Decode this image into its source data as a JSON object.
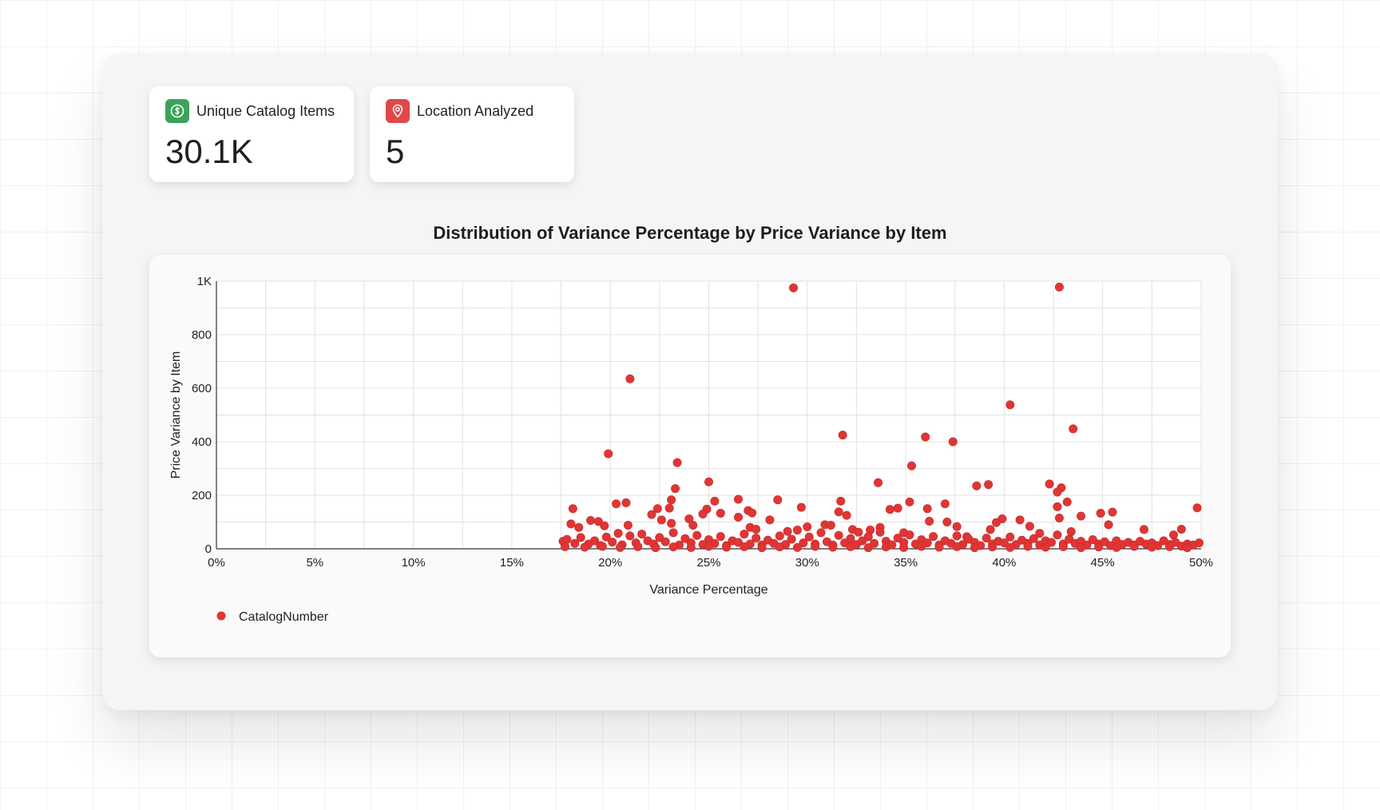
{
  "kpis": [
    {
      "label": "Unique Catalog Items",
      "value": "30.1K",
      "icon": "dollar-icon",
      "color": "#3aa35a"
    },
    {
      "label": "Location Analyzed",
      "value": "5",
      "icon": "location-pin-icon",
      "color": "#e04848"
    }
  ],
  "chart_data": {
    "type": "scatter",
    "title": "Distribution of Variance Percentage by Price Variance by Item",
    "xlabel": "Variance Percentage",
    "ylabel": "Price Variance by Item",
    "xlim": [
      0,
      50
    ],
    "ylim": [
      0,
      1000
    ],
    "x_ticks": [
      "0%",
      "5%",
      "10%",
      "15%",
      "20%",
      "25%",
      "30%",
      "35%",
      "40%",
      "45%",
      "50%"
    ],
    "y_ticks": [
      "0",
      "200",
      "400",
      "600",
      "800",
      "1K"
    ],
    "grid": true,
    "legend_position": "bottom-left",
    "series": [
      {
        "name": "CatalogNumber",
        "color": "#e03535",
        "points": [
          [
            29.3,
            975
          ],
          [
            42.8,
            978
          ],
          [
            21.0,
            635
          ],
          [
            40.3,
            538
          ],
          [
            43.5,
            448
          ],
          [
            31.8,
            425
          ],
          [
            36.0,
            418
          ],
          [
            37.4,
            400
          ],
          [
            19.9,
            355
          ],
          [
            23.4,
            322
          ],
          [
            35.3,
            310
          ],
          [
            38.6,
            235
          ],
          [
            39.2,
            240
          ],
          [
            42.3,
            242
          ],
          [
            42.9,
            228
          ],
          [
            33.6,
            247
          ],
          [
            25.0,
            250
          ],
          [
            23.3,
            225
          ],
          [
            42.7,
            212
          ],
          [
            20.3,
            168
          ],
          [
            20.8,
            172
          ],
          [
            23.1,
            183
          ],
          [
            25.3,
            178
          ],
          [
            26.5,
            185
          ],
          [
            28.5,
            183
          ],
          [
            31.7,
            178
          ],
          [
            35.2,
            175
          ],
          [
            37.0,
            168
          ],
          [
            43.2,
            175
          ],
          [
            49.8,
            153
          ],
          [
            18.1,
            150
          ],
          [
            22.4,
            150
          ],
          [
            23.0,
            152
          ],
          [
            24.9,
            148
          ],
          [
            27.0,
            143
          ],
          [
            29.7,
            155
          ],
          [
            31.6,
            138
          ],
          [
            34.6,
            152
          ],
          [
            36.1,
            150
          ],
          [
            42.7,
            157
          ],
          [
            44.9,
            133
          ],
          [
            45.5,
            137
          ],
          [
            24.7,
            130
          ],
          [
            25.6,
            133
          ],
          [
            27.2,
            134
          ],
          [
            26.5,
            118
          ],
          [
            28.1,
            108
          ],
          [
            32.0,
            125
          ],
          [
            34.2,
            147
          ],
          [
            39.9,
            112
          ],
          [
            40.8,
            108
          ],
          [
            42.8,
            115
          ],
          [
            43.9,
            122
          ],
          [
            18.0,
            93
          ],
          [
            18.4,
            80
          ],
          [
            19.0,
            106
          ],
          [
            19.4,
            102
          ],
          [
            19.7,
            86
          ],
          [
            20.9,
            88
          ],
          [
            22.1,
            128
          ],
          [
            22.6,
            108
          ],
          [
            23.1,
            95
          ],
          [
            24.0,
            112
          ],
          [
            24.2,
            88
          ],
          [
            27.1,
            80
          ],
          [
            27.4,
            73
          ],
          [
            29.0,
            65
          ],
          [
            30.0,
            82
          ],
          [
            30.9,
            90
          ],
          [
            31.2,
            88
          ],
          [
            32.3,
            72
          ],
          [
            32.6,
            62
          ],
          [
            33.2,
            70
          ],
          [
            33.7,
            80
          ],
          [
            34.9,
            60
          ],
          [
            36.2,
            103
          ],
          [
            37.1,
            100
          ],
          [
            37.6,
            83
          ],
          [
            38.1,
            45
          ],
          [
            39.3,
            72
          ],
          [
            39.6,
            98
          ],
          [
            41.3,
            84
          ],
          [
            41.8,
            58
          ],
          [
            43.4,
            64
          ],
          [
            45.3,
            90
          ],
          [
            47.1,
            72
          ],
          [
            49.0,
            73
          ],
          [
            48.6,
            52
          ],
          [
            17.6,
            28
          ],
          [
            17.8,
            35
          ],
          [
            18.2,
            20
          ],
          [
            18.5,
            42
          ],
          [
            18.9,
            18
          ],
          [
            19.2,
            30
          ],
          [
            19.5,
            12
          ],
          [
            19.8,
            44
          ],
          [
            20.1,
            25
          ],
          [
            20.4,
            58
          ],
          [
            20.6,
            15
          ],
          [
            21.0,
            48
          ],
          [
            21.3,
            22
          ],
          [
            21.6,
            55
          ],
          [
            21.9,
            30
          ],
          [
            22.2,
            18
          ],
          [
            22.5,
            42
          ],
          [
            22.8,
            26
          ],
          [
            23.2,
            60
          ],
          [
            23.5,
            14
          ],
          [
            23.8,
            38
          ],
          [
            24.1,
            22
          ],
          [
            24.4,
            50
          ],
          [
            24.7,
            16
          ],
          [
            25.0,
            34
          ],
          [
            25.3,
            20
          ],
          [
            25.6,
            46
          ],
          [
            25.9,
            12
          ],
          [
            26.2,
            30
          ],
          [
            26.5,
            24
          ],
          [
            26.8,
            55
          ],
          [
            27.1,
            18
          ],
          [
            27.4,
            40
          ],
          [
            27.7,
            14
          ],
          [
            28.0,
            32
          ],
          [
            28.3,
            20
          ],
          [
            28.6,
            48
          ],
          [
            28.9,
            16
          ],
          [
            29.2,
            36
          ],
          [
            29.5,
            70
          ],
          [
            29.8,
            22
          ],
          [
            30.1,
            44
          ],
          [
            30.4,
            18
          ],
          [
            30.7,
            60
          ],
          [
            31.0,
            26
          ],
          [
            31.3,
            14
          ],
          [
            31.6,
            50
          ],
          [
            31.9,
            22
          ],
          [
            32.2,
            38
          ],
          [
            32.5,
            16
          ],
          [
            32.8,
            30
          ],
          [
            33.1,
            45
          ],
          [
            33.4,
            20
          ],
          [
            33.7,
            62
          ],
          [
            34.0,
            28
          ],
          [
            34.3,
            15
          ],
          [
            34.6,
            40
          ],
          [
            34.9,
            24
          ],
          [
            35.2,
            52
          ],
          [
            35.5,
            18
          ],
          [
            35.8,
            34
          ],
          [
            36.1,
            22
          ],
          [
            36.4,
            46
          ],
          [
            36.7,
            14
          ],
          [
            37.0,
            30
          ],
          [
            37.3,
            20
          ],
          [
            37.6,
            48
          ],
          [
            37.9,
            16
          ],
          [
            38.2,
            36
          ],
          [
            38.5,
            24
          ],
          [
            38.8,
            12
          ],
          [
            39.1,
            40
          ],
          [
            39.4,
            18
          ],
          [
            39.7,
            28
          ],
          [
            40.0,
            22
          ],
          [
            40.3,
            44
          ],
          [
            40.6,
            16
          ],
          [
            40.9,
            32
          ],
          [
            41.2,
            20
          ],
          [
            41.5,
            38
          ],
          [
            41.8,
            14
          ],
          [
            42.1,
            30
          ],
          [
            42.4,
            24
          ],
          [
            42.7,
            52
          ],
          [
            43.0,
            18
          ],
          [
            43.3,
            36
          ],
          [
            43.6,
            20
          ],
          [
            43.9,
            28
          ],
          [
            44.2,
            14
          ],
          [
            44.5,
            34
          ],
          [
            44.8,
            18
          ],
          [
            45.1,
            26
          ],
          [
            45.4,
            12
          ],
          [
            45.7,
            30
          ],
          [
            46.0,
            16
          ],
          [
            46.3,
            24
          ],
          [
            46.6,
            14
          ],
          [
            46.9,
            28
          ],
          [
            47.2,
            18
          ],
          [
            47.5,
            22
          ],
          [
            47.8,
            12
          ],
          [
            48.1,
            30
          ],
          [
            48.4,
            16
          ],
          [
            48.7,
            24
          ],
          [
            49.0,
            10
          ],
          [
            49.3,
            18
          ],
          [
            49.6,
            14
          ],
          [
            49.9,
            22
          ],
          [
            17.7,
            8
          ],
          [
            18.7,
            6
          ],
          [
            19.6,
            9
          ],
          [
            20.5,
            5
          ],
          [
            21.4,
            8
          ],
          [
            22.3,
            4
          ],
          [
            23.2,
            7
          ],
          [
            24.1,
            5
          ],
          [
            25.0,
            9
          ],
          [
            25.9,
            6
          ],
          [
            26.8,
            8
          ],
          [
            27.7,
            4
          ],
          [
            28.6,
            7
          ],
          [
            29.5,
            5
          ],
          [
            30.4,
            9
          ],
          [
            31.3,
            6
          ],
          [
            32.2,
            8
          ],
          [
            33.1,
            4
          ],
          [
            34.0,
            7
          ],
          [
            34.9,
            5
          ],
          [
            35.8,
            9
          ],
          [
            36.7,
            6
          ],
          [
            37.6,
            8
          ],
          [
            38.5,
            4
          ],
          [
            39.4,
            7
          ],
          [
            40.3,
            5
          ],
          [
            41.2,
            9
          ],
          [
            42.1,
            6
          ],
          [
            43.0,
            8
          ],
          [
            43.9,
            4
          ],
          [
            44.8,
            7
          ],
          [
            45.7,
            5
          ],
          [
            46.6,
            9
          ],
          [
            47.5,
            6
          ],
          [
            48.4,
            8
          ],
          [
            49.3,
            4
          ]
        ]
      }
    ]
  }
}
